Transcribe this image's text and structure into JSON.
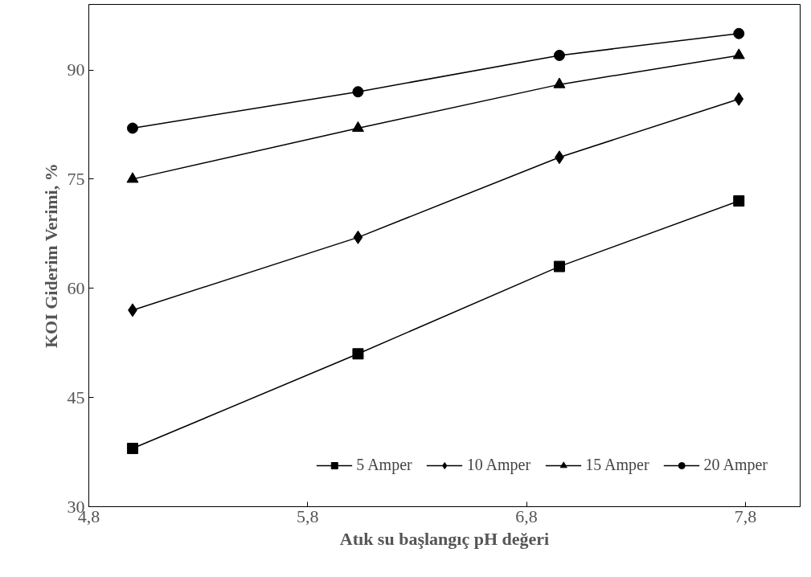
{
  "chart_data": {
    "type": "line",
    "xlabel": "Atık su başlangıç pH değeri",
    "ylabel": "KOI Giderim Verimi, %",
    "x": [
      5.0,
      6.03,
      6.95,
      7.77
    ],
    "xlim": [
      4.8,
      8.05
    ],
    "xticks": [
      {
        "value": 4.8,
        "label": "4,8"
      },
      {
        "value": 5.8,
        "label": "5,8"
      },
      {
        "value": 6.8,
        "label": "6,8"
      },
      {
        "value": 7.8,
        "label": "7,8"
      }
    ],
    "ylim": [
      30,
      99
    ],
    "yticks": [
      30,
      45,
      60,
      75,
      90
    ],
    "grid": false,
    "legend": "bottom",
    "line_style": "solid",
    "series": [
      {
        "name": "5 Amper",
        "color": "#000000",
        "marker": "square",
        "values": [
          38,
          51,
          63,
          72
        ]
      },
      {
        "name": "10 Amper",
        "color": "#000000",
        "marker": "diamond",
        "values": [
          57,
          67,
          78,
          86
        ]
      },
      {
        "name": "15 Amper",
        "color": "#000000",
        "marker": "triangle",
        "values": [
          75,
          82,
          88,
          92
        ]
      },
      {
        "name": "20 Amper",
        "color": "#000000",
        "marker": "circle",
        "values": [
          82,
          87,
          92,
          95
        ]
      }
    ]
  }
}
